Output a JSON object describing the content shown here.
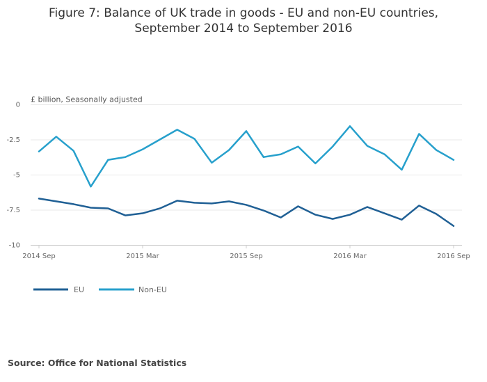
{
  "chart_data": {
    "type": "line",
    "title": "Figure 7: Balance of UK trade in goods - EU and non-EU countries,",
    "subtitle": "September 2014 to September 2016",
    "ylabel": "£ billion, Seasonally adjusted",
    "xlabel": "",
    "ylim": [
      -10,
      0
    ],
    "yticks": [
      {
        "value": 0,
        "label": "0"
      },
      {
        "value": -2.5,
        "label": "-2.5"
      },
      {
        "value": -5,
        "label": "-5"
      },
      {
        "value": -7.5,
        "label": "-7.5"
      },
      {
        "value": -10,
        "label": "-10"
      }
    ],
    "xticks": [
      {
        "index": 0,
        "label": "2014 Sep"
      },
      {
        "index": 6,
        "label": "2015 Mar"
      },
      {
        "index": 12,
        "label": "2015 Sep"
      },
      {
        "index": 18,
        "label": "2016 Mar"
      },
      {
        "index": 24,
        "label": "2016 Sep"
      }
    ],
    "categories": [
      "2014 Sep",
      "2014 Oct",
      "2014 Nov",
      "2014 Dec",
      "2015 Jan",
      "2015 Feb",
      "2015 Mar",
      "2015 Apr",
      "2015 May",
      "2015 Jun",
      "2015 Jul",
      "2015 Aug",
      "2015 Sep",
      "2015 Oct",
      "2015 Nov",
      "2015 Dec",
      "2016 Jan",
      "2016 Feb",
      "2016 Mar",
      "2016 Apr",
      "2016 May",
      "2016 Jun",
      "2016 Jul",
      "2016 Aug",
      "2016 Sep"
    ],
    "series": [
      {
        "name": "EU",
        "color": "#206095",
        "values": [
          -6.7,
          -6.9,
          -7.1,
          -7.35,
          -7.4,
          -7.9,
          -7.75,
          -7.4,
          -6.85,
          -7.0,
          -7.05,
          -6.9,
          -7.15,
          -7.55,
          -8.05,
          -7.25,
          -7.85,
          -8.15,
          -7.85,
          -7.3,
          -7.75,
          -8.2,
          -7.2,
          -7.8,
          -8.65
        ]
      },
      {
        "name": "Non-EU",
        "color": "#27a0cc",
        "values": [
          -3.35,
          -2.3,
          -3.3,
          -5.85,
          -3.95,
          -3.75,
          -3.2,
          -2.5,
          -1.8,
          -2.45,
          -4.15,
          -3.25,
          -1.9,
          -3.75,
          -3.55,
          -3.0,
          -4.2,
          -3.0,
          -1.55,
          -2.95,
          -3.55,
          -4.65,
          -2.1,
          -3.25,
          -3.95
        ]
      }
    ],
    "grid": true,
    "legend_position": "bottom-left"
  },
  "source": "Source: Office for National Statistics"
}
